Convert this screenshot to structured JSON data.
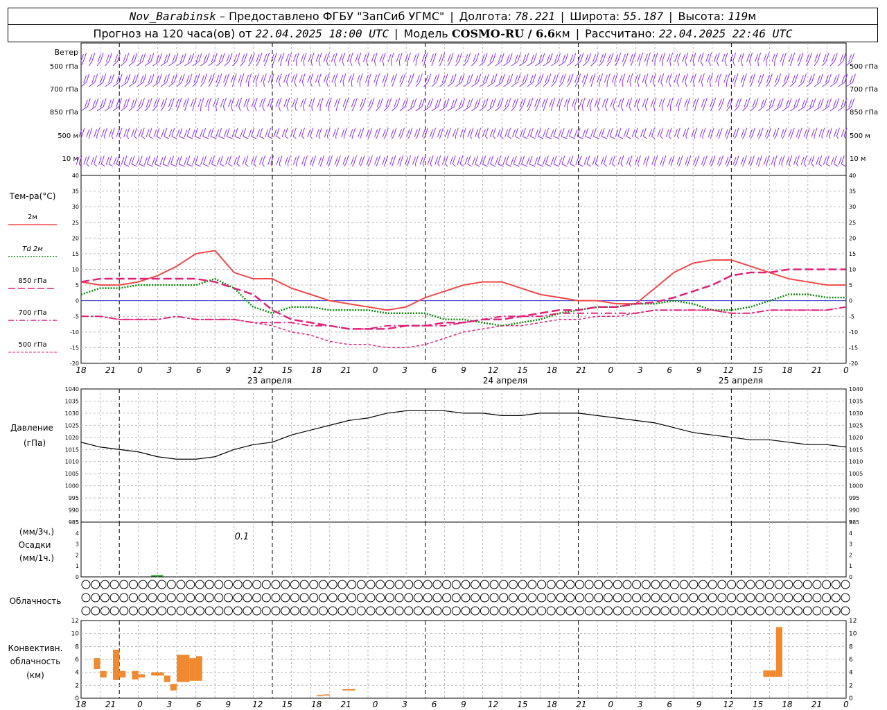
{
  "header": {
    "station": "Nov_Barabinsk",
    "provider": " – Предоставлено ФГБУ \"ЗапСиб УГМС\"",
    "lon_label": "Долгота:",
    "lon_value": "78.221",
    "lat_label": "Широта:",
    "lat_value": "55.187",
    "alt_label": "Высота:",
    "alt_value": "119",
    "alt_unit": "м",
    "forecast_label": "Прогноз на 120 часа(ов) от",
    "forecast_start": "22.04.2025 18:00 UTC",
    "model_label": "Модель",
    "model_name": "COSMO-RU / 6.6",
    "model_unit": "км",
    "calc_label": "Рассчитано:",
    "calc_time": "22.04.2025 22:46 UTC"
  },
  "wind_panel": {
    "title": "Ветер",
    "levels": [
      "500 гПа",
      "700 гПа",
      "850 гПа",
      "500 м",
      "10 м"
    ]
  },
  "temp_panel": {
    "title": "Тем-ра(°C)",
    "legend": [
      {
        "label": "2м",
        "color": "#f04848",
        "style": "solid"
      },
      {
        "label": "Td 2м",
        "color": "#0a8a0a",
        "style": "dotted"
      },
      {
        "label": "850 гПа",
        "color": "#e0207a",
        "style": "dashed"
      },
      {
        "label": "700 гПа",
        "color": "#e0207a",
        "style": "dashdot"
      },
      {
        "label": "500 гПа",
        "color": "#e0207a",
        "style": "dashdot2"
      }
    ]
  },
  "pressure_panel": {
    "label1": "Давление",
    "label2": "(гПа)"
  },
  "precip_panel": {
    "label1": "(мм/3ч.)",
    "label2": "Осадки",
    "label3": "(мм/1ч.)",
    "annotation": "0.1"
  },
  "cloud_panel": {
    "label": "Облачность"
  },
  "conv_panel": {
    "label1": "Конвективн.",
    "label2": "облачность",
    "label3": "(км)"
  },
  "x_axis": {
    "tick_labels": [
      "18",
      "21",
      "0",
      "3",
      "6",
      "9",
      "12",
      "15",
      "18",
      "21",
      "0",
      "3",
      "6",
      "9",
      "12",
      "15",
      "18",
      "21",
      "0",
      "3",
      "6",
      "9",
      "12",
      "15",
      "18",
      "21",
      "0"
    ],
    "day_labels": [
      "23 апреля",
      "24 апреля",
      "25 апреля"
    ]
  },
  "colors": {
    "wind": "#8a2be2",
    "temp2m": "#f04848",
    "dew": "#0a8a0a",
    "upper": "#e0207a",
    "zero_line": "#3030d0",
    "pressure": "#000000",
    "precip": "#22aa22",
    "convective": "#f08a30"
  },
  "chart_data": [
    {
      "type": "line",
      "title": "Тем-ра(°C)",
      "x_hours_from_start": [
        0,
        3,
        6,
        9,
        12,
        15,
        18,
        21,
        24,
        27,
        30,
        33,
        36,
        39,
        42,
        45,
        48,
        51,
        54,
        57,
        60,
        63,
        66,
        69,
        72,
        75,
        78,
        81,
        84,
        87,
        90,
        93,
        96,
        99,
        102,
        105,
        108,
        111,
        114,
        117,
        120
      ],
      "ylim": [
        -20,
        40
      ],
      "series": [
        {
          "name": "2м",
          "values": [
            6,
            5,
            5,
            6,
            8,
            11,
            15,
            16,
            9,
            7,
            7,
            4,
            2,
            0,
            -1,
            -2,
            -3,
            -2,
            1,
            3,
            5,
            6,
            6,
            4,
            2,
            1,
            0,
            0,
            -1,
            -1,
            4,
            9,
            12,
            13,
            13,
            11,
            9,
            7,
            6,
            5,
            5
          ]
        },
        {
          "name": "Td 2м",
          "values": [
            2,
            4,
            4,
            5,
            5,
            5,
            5,
            7,
            4,
            -2,
            -4,
            -2,
            -2,
            -3,
            -3,
            -3,
            -4,
            -4,
            -4,
            -6,
            -6,
            -7,
            -8,
            -7,
            -6,
            -4,
            -3,
            -2,
            -2,
            -1,
            -1,
            0,
            -1,
            -3,
            -3,
            -2,
            0,
            2,
            2,
            1,
            1
          ]
        },
        {
          "name": "850 гПа",
          "values": [
            6,
            7,
            7,
            7,
            7,
            7,
            7,
            6,
            4,
            2,
            -3,
            -6,
            -7,
            -8,
            -9,
            -9,
            -9,
            -8,
            -8,
            -7,
            -7,
            -6,
            -6,
            -5,
            -4,
            -3,
            -3,
            -2,
            -2,
            -1,
            -0.5,
            1,
            3,
            5,
            8,
            9,
            9,
            10,
            10,
            10,
            10
          ]
        },
        {
          "name": "700 гПа",
          "values": [
            -5,
            -5,
            -6,
            -6,
            -6,
            -5,
            -6,
            -6,
            -6,
            -7,
            -7,
            -7,
            -8,
            -8,
            -9,
            -9,
            -8,
            -8,
            -8,
            -8,
            -7,
            -6,
            -5,
            -5,
            -5,
            -4,
            -4,
            -4,
            -4,
            -4,
            -3,
            -3,
            -3,
            -3,
            -4,
            -4,
            -3,
            -3,
            -3,
            -3,
            -2
          ]
        },
        {
          "name": "500 гПа",
          "values": [
            -5,
            -5,
            -6,
            -6,
            -6,
            -5,
            -6,
            -6,
            -6,
            -7,
            -8,
            -10,
            -11,
            -13,
            -14,
            -14,
            -15,
            -15,
            -14,
            -12,
            -10,
            -9,
            -8,
            -8,
            -7,
            -6,
            -6,
            -5,
            -5,
            -4,
            -3,
            -3,
            -3,
            -3,
            -4,
            -4,
            -3,
            -3,
            -3,
            -3,
            -2
          ]
        }
      ]
    },
    {
      "type": "line",
      "title": "Давление (гПа)",
      "x_hours_from_start": [
        0,
        3,
        6,
        9,
        12,
        15,
        18,
        21,
        24,
        27,
        30,
        33,
        36,
        39,
        42,
        45,
        48,
        51,
        54,
        57,
        60,
        63,
        66,
        69,
        72,
        75,
        78,
        81,
        84,
        87,
        90,
        93,
        96,
        99,
        102,
        105,
        108,
        111,
        114,
        117,
        120
      ],
      "ylim": [
        985,
        1040
      ],
      "series": [
        {
          "name": "pressure",
          "values": [
            1018,
            1016,
            1015,
            1014,
            1012,
            1011,
            1011,
            1012,
            1015,
            1017,
            1018,
            1021,
            1023,
            1025,
            1027,
            1028,
            1030,
            1031,
            1031,
            1031,
            1030,
            1030,
            1029,
            1029,
            1030,
            1030,
            1030,
            1029,
            1028,
            1027,
            1026,
            1024,
            1022,
            1021,
            1020,
            1019,
            1019,
            1018,
            1017,
            1017,
            1016
          ]
        }
      ]
    },
    {
      "type": "bar",
      "title": "Осадки",
      "x_hours_from_start": [
        11
      ],
      "values": [
        0.1
      ],
      "ylim": [
        0,
        5
      ]
    },
    {
      "type": "bar",
      "title": "Конвективн. облачность (км)",
      "ylim": [
        0,
        12
      ],
      "bars": [
        {
          "x": [
            2,
            3
          ],
          "base": 4.5,
          "top": 6.2
        },
        {
          "x": [
            3,
            4
          ],
          "base": 3.2,
          "top": 4.2
        },
        {
          "x": [
            5,
            6
          ],
          "base": 2.8,
          "top": 7.5
        },
        {
          "x": [
            6,
            7
          ],
          "base": 3.2,
          "top": 4.2
        },
        {
          "x": [
            8,
            9
          ],
          "base": 2.9,
          "top": 4.2
        },
        {
          "x": [
            9,
            10
          ],
          "base": 3.2,
          "top": 3.7
        },
        {
          "x": [
            11,
            12.5
          ],
          "base": 3.5,
          "top": 4.0
        },
        {
          "x": [
            12.5,
            13
          ],
          "base": 3.5,
          "top": 4.0
        },
        {
          "x": [
            13,
            14
          ],
          "base": 2.5,
          "top": 3.5
        },
        {
          "x": [
            14,
            15
          ],
          "base": 1.2,
          "top": 2.2
        },
        {
          "x": [
            15,
            17
          ],
          "base": 2.5,
          "top": 6.7
        },
        {
          "x": [
            17,
            18
          ],
          "base": 2.7,
          "top": 6.2
        },
        {
          "x": [
            18,
            19
          ],
          "base": 2.7,
          "top": 6.5
        },
        {
          "x": [
            37,
            38
          ],
          "base": 0.3,
          "top": 0.5
        },
        {
          "x": [
            38,
            39
          ],
          "base": 0.4,
          "top": 0.6
        },
        {
          "x": [
            41,
            43
          ],
          "base": 1.2,
          "top": 1.4
        },
        {
          "x": [
            107,
            108
          ],
          "base": 3.3,
          "top": 4.3
        },
        {
          "x": [
            108,
            109
          ],
          "base": 3.3,
          "top": 4.3
        },
        {
          "x": [
            109,
            110
          ],
          "base": 3.3,
          "top": 11.0
        }
      ]
    }
  ]
}
